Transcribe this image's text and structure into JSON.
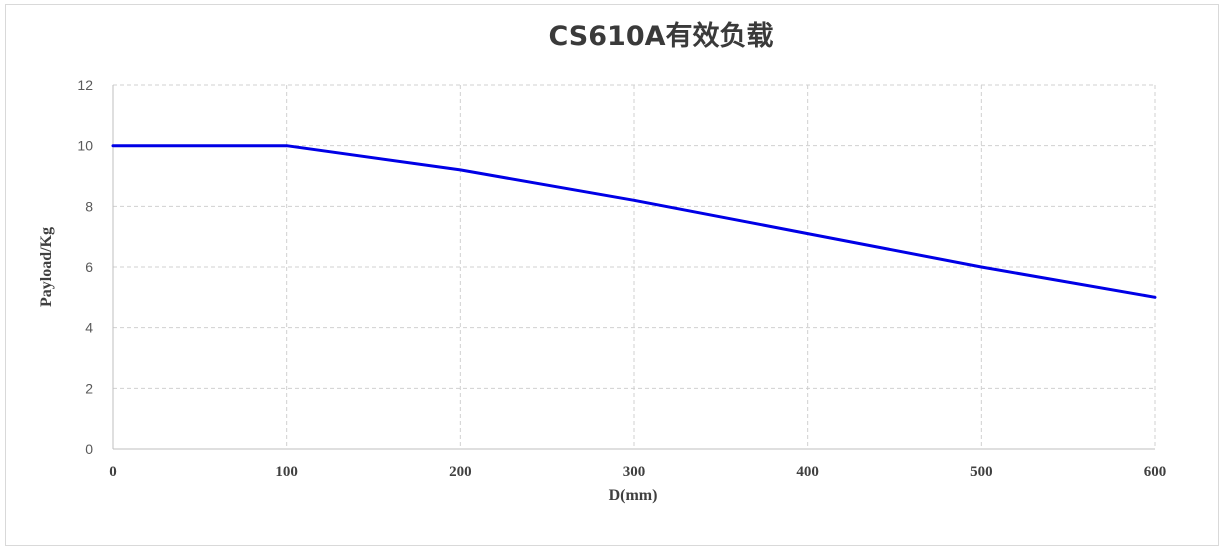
{
  "chart_data": {
    "type": "line",
    "title": "CS610A有效负载",
    "xlabel": "D(mm)",
    "ylabel": "Payload/Kg",
    "xlim": [
      0,
      600
    ],
    "ylim": [
      0,
      12
    ],
    "xticks": [
      0,
      100,
      200,
      300,
      400,
      500,
      600
    ],
    "yticks": [
      0,
      2,
      4,
      6,
      8,
      10,
      12
    ],
    "grid": true,
    "grid_style": "dashed",
    "legend": "none",
    "series": [
      {
        "color": "#0000e6",
        "x": [
          0,
          100,
          200,
          300,
          400,
          500,
          600
        ],
        "y": [
          10,
          10,
          9.2,
          8.2,
          7.1,
          6.0,
          5.0
        ]
      }
    ]
  }
}
